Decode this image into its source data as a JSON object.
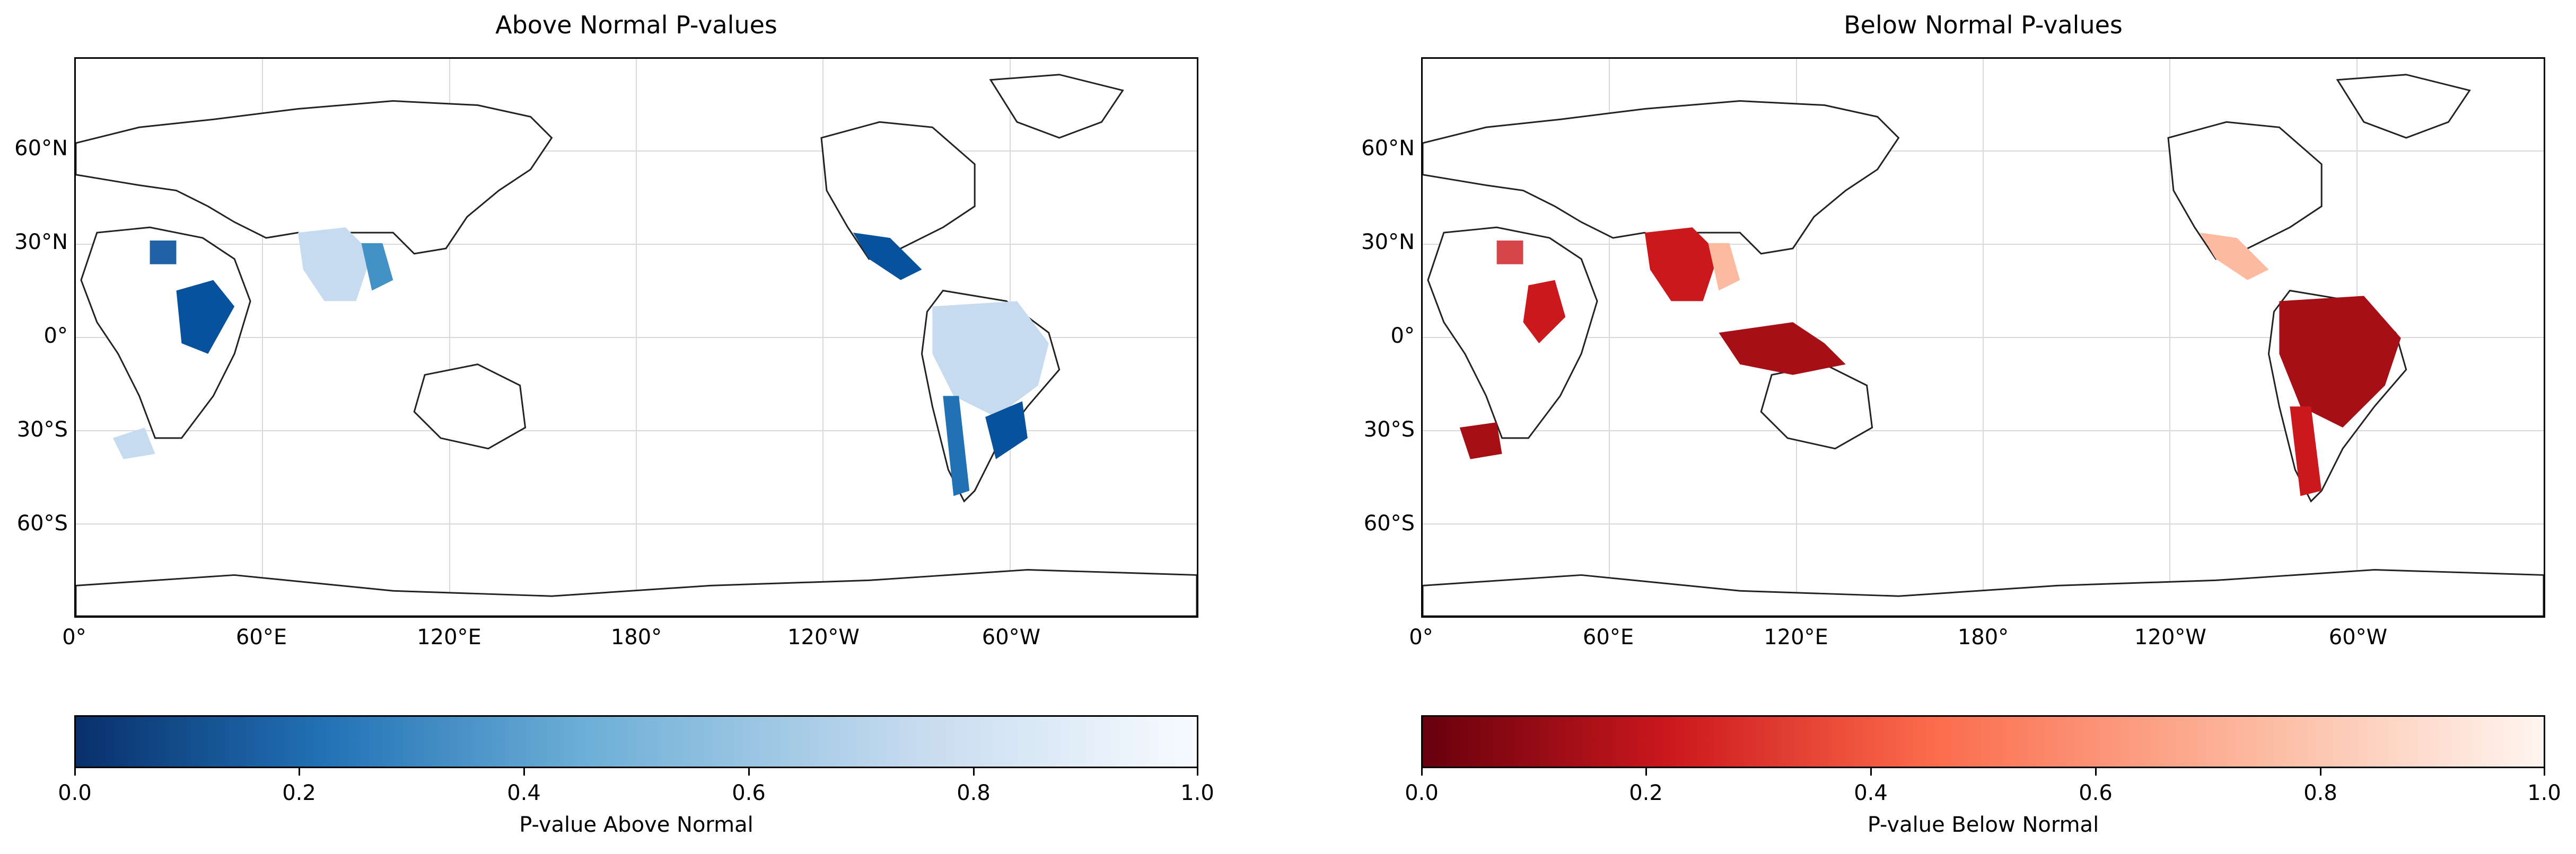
{
  "left": {
    "title": "Above Normal P-values",
    "colorbar_label": "P-value Above Normal",
    "colormap": "Blues_r",
    "colors": {
      "low": "#08306b",
      "high": "#f7fbff",
      "fill_a": "#08519c",
      "fill_b": "#4292c6",
      "fill_c": "#c6dbef"
    }
  },
  "right": {
    "title": "Below Normal P-values",
    "colorbar_label": "P-value Below Normal",
    "colormap": "Reds_r",
    "colors": {
      "low": "#67000d",
      "high": "#fff5f0",
      "fill_a": "#a50f15",
      "fill_b": "#cb181d",
      "fill_c": "#fcbba1"
    }
  },
  "lat_ticks": [
    "60°N",
    "30°N",
    "0°",
    "30°S",
    "60°S"
  ],
  "lon_ticks": [
    "0°",
    "60°E",
    "120°E",
    "180°",
    "120°W",
    "60°W"
  ],
  "colorbar_ticks": [
    "0.0",
    "0.2",
    "0.4",
    "0.6",
    "0.8",
    "1.0"
  ]
}
